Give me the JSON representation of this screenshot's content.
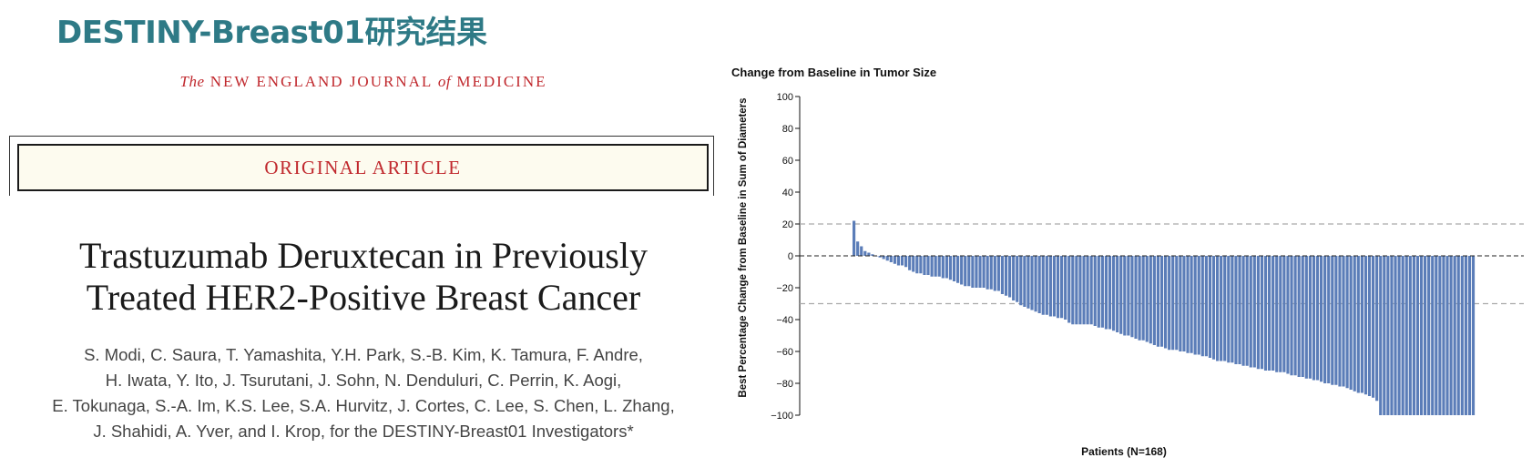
{
  "slide": {
    "title": "DESTINY-Breast01研究结果",
    "title_color": "#2e7a86"
  },
  "journal": {
    "the": "The",
    "name1": "NEW ENGLAND JOURNAL",
    "of": "of",
    "name2": "MEDICINE",
    "color": "#c0282d"
  },
  "article": {
    "label": "ORIGINAL ARTICLE",
    "label_color": "#c0282d"
  },
  "paper": {
    "title_line1": "Trastuzumab Deruxtecan in Previously",
    "title_line2": "Treated HER2-Positive Breast Cancer",
    "authors": [
      "S. Modi, C. Saura, T. Yamashita, Y.H. Park, S.-B. Kim, K. Tamura, F. Andre,",
      "H. Iwata, Y. Ito, J. Tsurutani, J. Sohn, N. Denduluri, C. Perrin, K. Aogi,",
      "E. Tokunaga, S.-A. Im, K.S. Lee, S.A. Hurvitz, J. Cortes, C. Lee, S. Chen, L. Zhang,",
      "J. Shahidi, A. Yver, and I. Krop, for the DESTINY-Breast01 Investigators*"
    ]
  },
  "chart_data": {
    "type": "bar",
    "title": "Change from Baseline in Tumor Size",
    "xlabel": "Patients (N=168)",
    "ylabel": "Best Percentage Change from Baseline in Sum of Diameters",
    "ylim": [
      -100,
      100
    ],
    "yticks": [
      100,
      80,
      60,
      40,
      20,
      0,
      -20,
      -40,
      -60,
      -80,
      -100
    ],
    "reference_lines": [
      20,
      -30
    ],
    "bar_color": "#5b7db8",
    "n": 168,
    "values": [
      22,
      9,
      6,
      3,
      2,
      1,
      0,
      -1,
      -2,
      -3,
      -4,
      -5,
      -6,
      -6,
      -7,
      -9,
      -10,
      -11,
      -11,
      -12,
      -12,
      -13,
      -13,
      -13,
      -14,
      -14,
      -15,
      -16,
      -17,
      -18,
      -19,
      -19,
      -20,
      -20,
      -20,
      -20,
      -21,
      -21,
      -22,
      -22,
      -24,
      -25,
      -26,
      -28,
      -29,
      -31,
      -32,
      -33,
      -34,
      -35,
      -36,
      -37,
      -37,
      -38,
      -38,
      -39,
      -39,
      -40,
      -42,
      -43,
      -43,
      -43,
      -43,
      -43,
      -43,
      -44,
      -45,
      -45,
      -46,
      -46,
      -47,
      -48,
      -49,
      -50,
      -50,
      -51,
      -52,
      -53,
      -53,
      -54,
      -55,
      -56,
      -57,
      -57,
      -58,
      -59,
      -59,
      -59,
      -60,
      -60,
      -61,
      -61,
      -62,
      -62,
      -63,
      -63,
      -64,
      -65,
      -66,
      -66,
      -66,
      -67,
      -67,
      -68,
      -68,
      -69,
      -69,
      -70,
      -70,
      -71,
      -71,
      -72,
      -72,
      -72,
      -73,
      -73,
      -73,
      -74,
      -75,
      -75,
      -76,
      -76,
      -77,
      -77,
      -78,
      -78,
      -79,
      -80,
      -80,
      -81,
      -81,
      -82,
      -82,
      -83,
      -84,
      -85,
      -86,
      -86,
      -87,
      -88,
      -89,
      -91,
      -100,
      -100,
      -100,
      -100,
      -100,
      -100,
      -100,
      -100,
      -100,
      -100,
      -100,
      -100,
      -100,
      -100,
      -100,
      -100,
      -100,
      -100,
      -100,
      -100,
      -100,
      -100,
      -100,
      -100,
      -100,
      -100
    ]
  }
}
